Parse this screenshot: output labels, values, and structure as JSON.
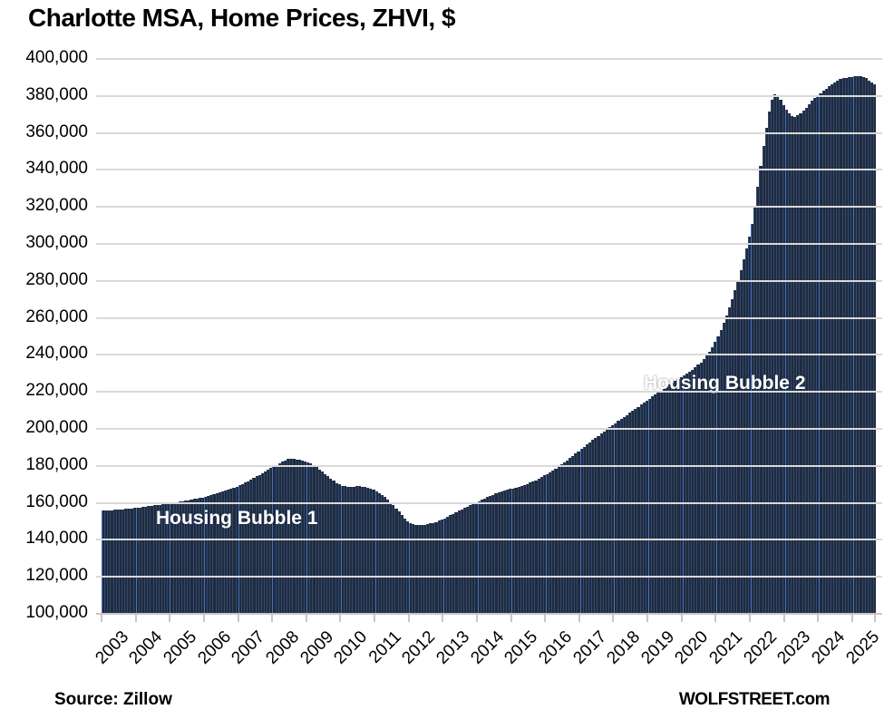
{
  "title": "Charlotte MSA, Home Prices, ZHVI, $",
  "footer": {
    "source": "Source: Zillow",
    "brand": "WOLFSTREET.com"
  },
  "annotations": {
    "bubble1": "Housing Bubble 1",
    "bubble2": "Housing Bubble 2"
  },
  "colors": {
    "bar_fill": "#1f2b3f",
    "bar_separator": "#34496b",
    "january_line": "#4472c4",
    "gridline": "#d9d9d9",
    "axis": "#c6c6c6",
    "text": "#000000",
    "annotation_text": "#ffffff",
    "background": "#ffffff"
  },
  "chart_data": {
    "type": "bar",
    "title": "Charlotte MSA, Home Prices, ZHVI, $",
    "xlabel": "",
    "ylabel": "",
    "frequency": "monthly",
    "x_start": "2003-01",
    "x_end": "2025-08",
    "ylim": [
      100000,
      400000
    ],
    "y_tick_step": 20000,
    "grid": "horizontal",
    "legend": "none",
    "y_tick_labels": [
      "400,000",
      "380,000",
      "360,000",
      "340,000",
      "320,000",
      "300,000",
      "280,000",
      "260,000",
      "240,000",
      "220,000",
      "200,000",
      "180,000",
      "160,000",
      "140,000",
      "120,000",
      "100,000"
    ],
    "x_tick_labels": [
      "2003",
      "2004",
      "2005",
      "2006",
      "2007",
      "2008",
      "2009",
      "2010",
      "2011",
      "2012",
      "2013",
      "2014",
      "2015",
      "2016",
      "2017",
      "2018",
      "2019",
      "2020",
      "2021",
      "2022",
      "2023",
      "2024",
      "2025"
    ],
    "values": [
      155300,
      155400,
      155500,
      155600,
      155700,
      155800,
      155900,
      156000,
      156200,
      156300,
      156500,
      156700,
      156900,
      157100,
      157300,
      157500,
      157700,
      157900,
      158100,
      158300,
      158500,
      158700,
      158900,
      159100,
      159300,
      159500,
      159800,
      160100,
      160400,
      160700,
      161000,
      161300,
      161600,
      161900,
      162200,
      162500,
      162900,
      163300,
      163700,
      164100,
      164500,
      165000,
      165500,
      166000,
      166500,
      167000,
      167600,
      168200,
      168900,
      169600,
      170400,
      171200,
      172000,
      172900,
      173800,
      174700,
      175600,
      176500,
      177400,
      178300,
      179200,
      180100,
      181000,
      181900,
      182600,
      183100,
      183300,
      183200,
      183000,
      182700,
      182300,
      181900,
      181400,
      180700,
      179800,
      178800,
      177700,
      176500,
      175200,
      173900,
      172600,
      171400,
      170300,
      169400,
      168800,
      168400,
      168200,
      168200,
      168300,
      168400,
      168400,
      168300,
      168000,
      167600,
      167100,
      166500,
      165800,
      164900,
      163800,
      162600,
      161300,
      159900,
      158300,
      156600,
      154800,
      153000,
      151200,
      149600,
      148600,
      148100,
      147800,
      147700,
      147700,
      147800,
      148000,
      148300,
      148700,
      149200,
      149800,
      150500,
      151200,
      152000,
      152800,
      153600,
      154400,
      155200,
      156000,
      156800,
      157600,
      158400,
      159100,
      159800,
      160500,
      161200,
      161900,
      162600,
      163300,
      163900,
      164500,
      165100,
      165600,
      166100,
      166600,
      167000,
      167400,
      167800,
      168200,
      168700,
      169200,
      169800,
      170400,
      171100,
      171800,
      172600,
      173400,
      174300,
      175200,
      176100,
      177100,
      178100,
      179200,
      180300,
      181400,
      182600,
      183800,
      185000,
      186200,
      187400,
      188600,
      189800,
      191000,
      192200,
      193400,
      194600,
      195800,
      197000,
      198200,
      199400,
      200500,
      201600,
      202700,
      203800,
      204900,
      206000,
      207100,
      208200,
      209300,
      210400,
      211500,
      212600,
      213700,
      214800,
      215900,
      217000,
      218100,
      219200,
      220300,
      221400,
      222500,
      223500,
      224500,
      225500,
      226500,
      227500,
      228500,
      229500,
      230500,
      231600,
      232800,
      234100,
      235500,
      237100,
      239000,
      241200,
      243700,
      246500,
      249600,
      253000,
      256700,
      260700,
      265000,
      269600,
      274500,
      279700,
      285200,
      291000,
      297100,
      303500,
      310200,
      320000,
      330500,
      341500,
      352500,
      362500,
      371000,
      377500,
      380600,
      379800,
      377500,
      374500,
      372000,
      369900,
      368500,
      368300,
      368900,
      370000,
      371500,
      373200,
      375000,
      376800,
      378400,
      379800,
      381000,
      382200,
      383400,
      384600,
      385800,
      386900,
      387800,
      388500,
      389000,
      389400,
      389700,
      389900,
      390100,
      390300,
      390200,
      389800,
      389000,
      387900,
      386800,
      385800
    ]
  }
}
